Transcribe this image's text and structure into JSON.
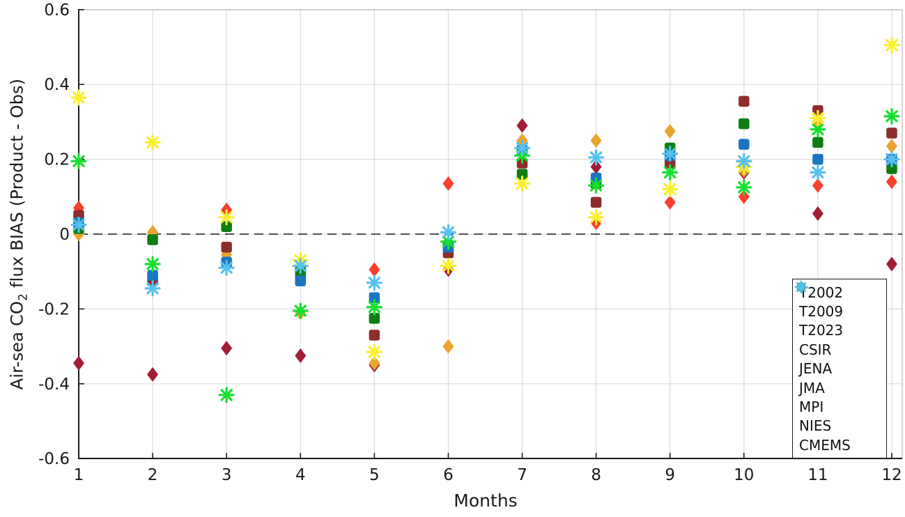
{
  "figure": {
    "ylabel_prefix": "Air-sea CO",
    "ylabel_sub": "2",
    "ylabel_suffix": " flux BIAS (Product - Obs)",
    "xlabel": "Months"
  },
  "chart_data": {
    "type": "scatter",
    "title": "",
    "xlabel": "Months",
    "ylabel": "Air-sea CO2 flux BIAS (Product - Obs)",
    "x": [
      1,
      2,
      3,
      4,
      5,
      6,
      7,
      8,
      9,
      10,
      11,
      12
    ],
    "xtick_labels": [
      "1",
      "2",
      "3",
      "4",
      "5",
      "6",
      "7",
      "8",
      "9",
      "10",
      "11",
      "12"
    ],
    "ylim": [
      -0.6,
      0.6
    ],
    "yticks": [
      0.6,
      0.4,
      0.2,
      0,
      -0.2,
      -0.4,
      -0.6
    ],
    "ytick_labels": [
      "0.6",
      "0.4",
      "0.2",
      "0",
      "-0.2",
      "-0.4",
      "-0.6"
    ],
    "grid": true,
    "zero_line": "dashed",
    "legend_position": "lower-right",
    "series": [
      {
        "name": "T2002",
        "marker": "diamond",
        "color": "#f93e2d",
        "values": [
          0.07,
          -0.11,
          0.065,
          -0.085,
          -0.095,
          0.135,
          0.25,
          0.03,
          0.085,
          0.1,
          0.13,
          0.14
        ]
      },
      {
        "name": "T2009",
        "marker": "diamond",
        "color": "#a21c38",
        "values": [
          -0.345,
          -0.375,
          -0.305,
          -0.325,
          -0.35,
          -0.095,
          0.29,
          0.18,
          0.195,
          0.165,
          0.055,
          -0.08
        ]
      },
      {
        "name": "T2023",
        "marker": "diamond",
        "color": "#e9a52f",
        "values": [
          0.0,
          0.005,
          -0.055,
          -0.21,
          -0.345,
          -0.3,
          0.25,
          0.25,
          0.275,
          0.17,
          0.3,
          0.235
        ]
      },
      {
        "name": "CSIR",
        "marker": "square",
        "color": "#8f2d2d",
        "values": [
          0.05,
          -0.125,
          -0.035,
          -0.12,
          -0.27,
          -0.05,
          0.19,
          0.085,
          0.19,
          0.355,
          0.33,
          0.27
        ]
      },
      {
        "name": "JENA",
        "marker": "square",
        "color": "#0e7d12",
        "values": [
          0.015,
          -0.015,
          0.02,
          -0.1,
          -0.225,
          -0.03,
          0.16,
          0.135,
          0.23,
          0.295,
          0.245,
          0.175
        ]
      },
      {
        "name": "JMA",
        "marker": "square",
        "color": "#1b75c0",
        "values": [
          0.03,
          -0.11,
          -0.075,
          -0.125,
          -0.17,
          -0.035,
          0.225,
          0.15,
          0.21,
          0.24,
          0.2,
          0.2
        ]
      },
      {
        "name": "MPI",
        "marker": "asterisk",
        "color": "#16e02e",
        "values": [
          0.195,
          -0.08,
          -0.43,
          -0.205,
          -0.195,
          -0.02,
          0.21,
          0.13,
          0.165,
          0.125,
          0.28,
          0.315
        ]
      },
      {
        "name": "NIES",
        "marker": "asterisk",
        "color": "#f8ef2c",
        "values": [
          0.365,
          0.245,
          0.045,
          -0.07,
          -0.315,
          -0.085,
          0.135,
          0.045,
          0.12,
          0.18,
          0.31,
          0.505
        ]
      },
      {
        "name": "CMEMS",
        "marker": "asterisk",
        "color": "#55c1ee",
        "values": [
          0.025,
          -0.145,
          -0.09,
          -0.085,
          -0.13,
          0.005,
          0.23,
          0.205,
          0.215,
          0.195,
          0.165,
          0.2
        ]
      }
    ]
  }
}
